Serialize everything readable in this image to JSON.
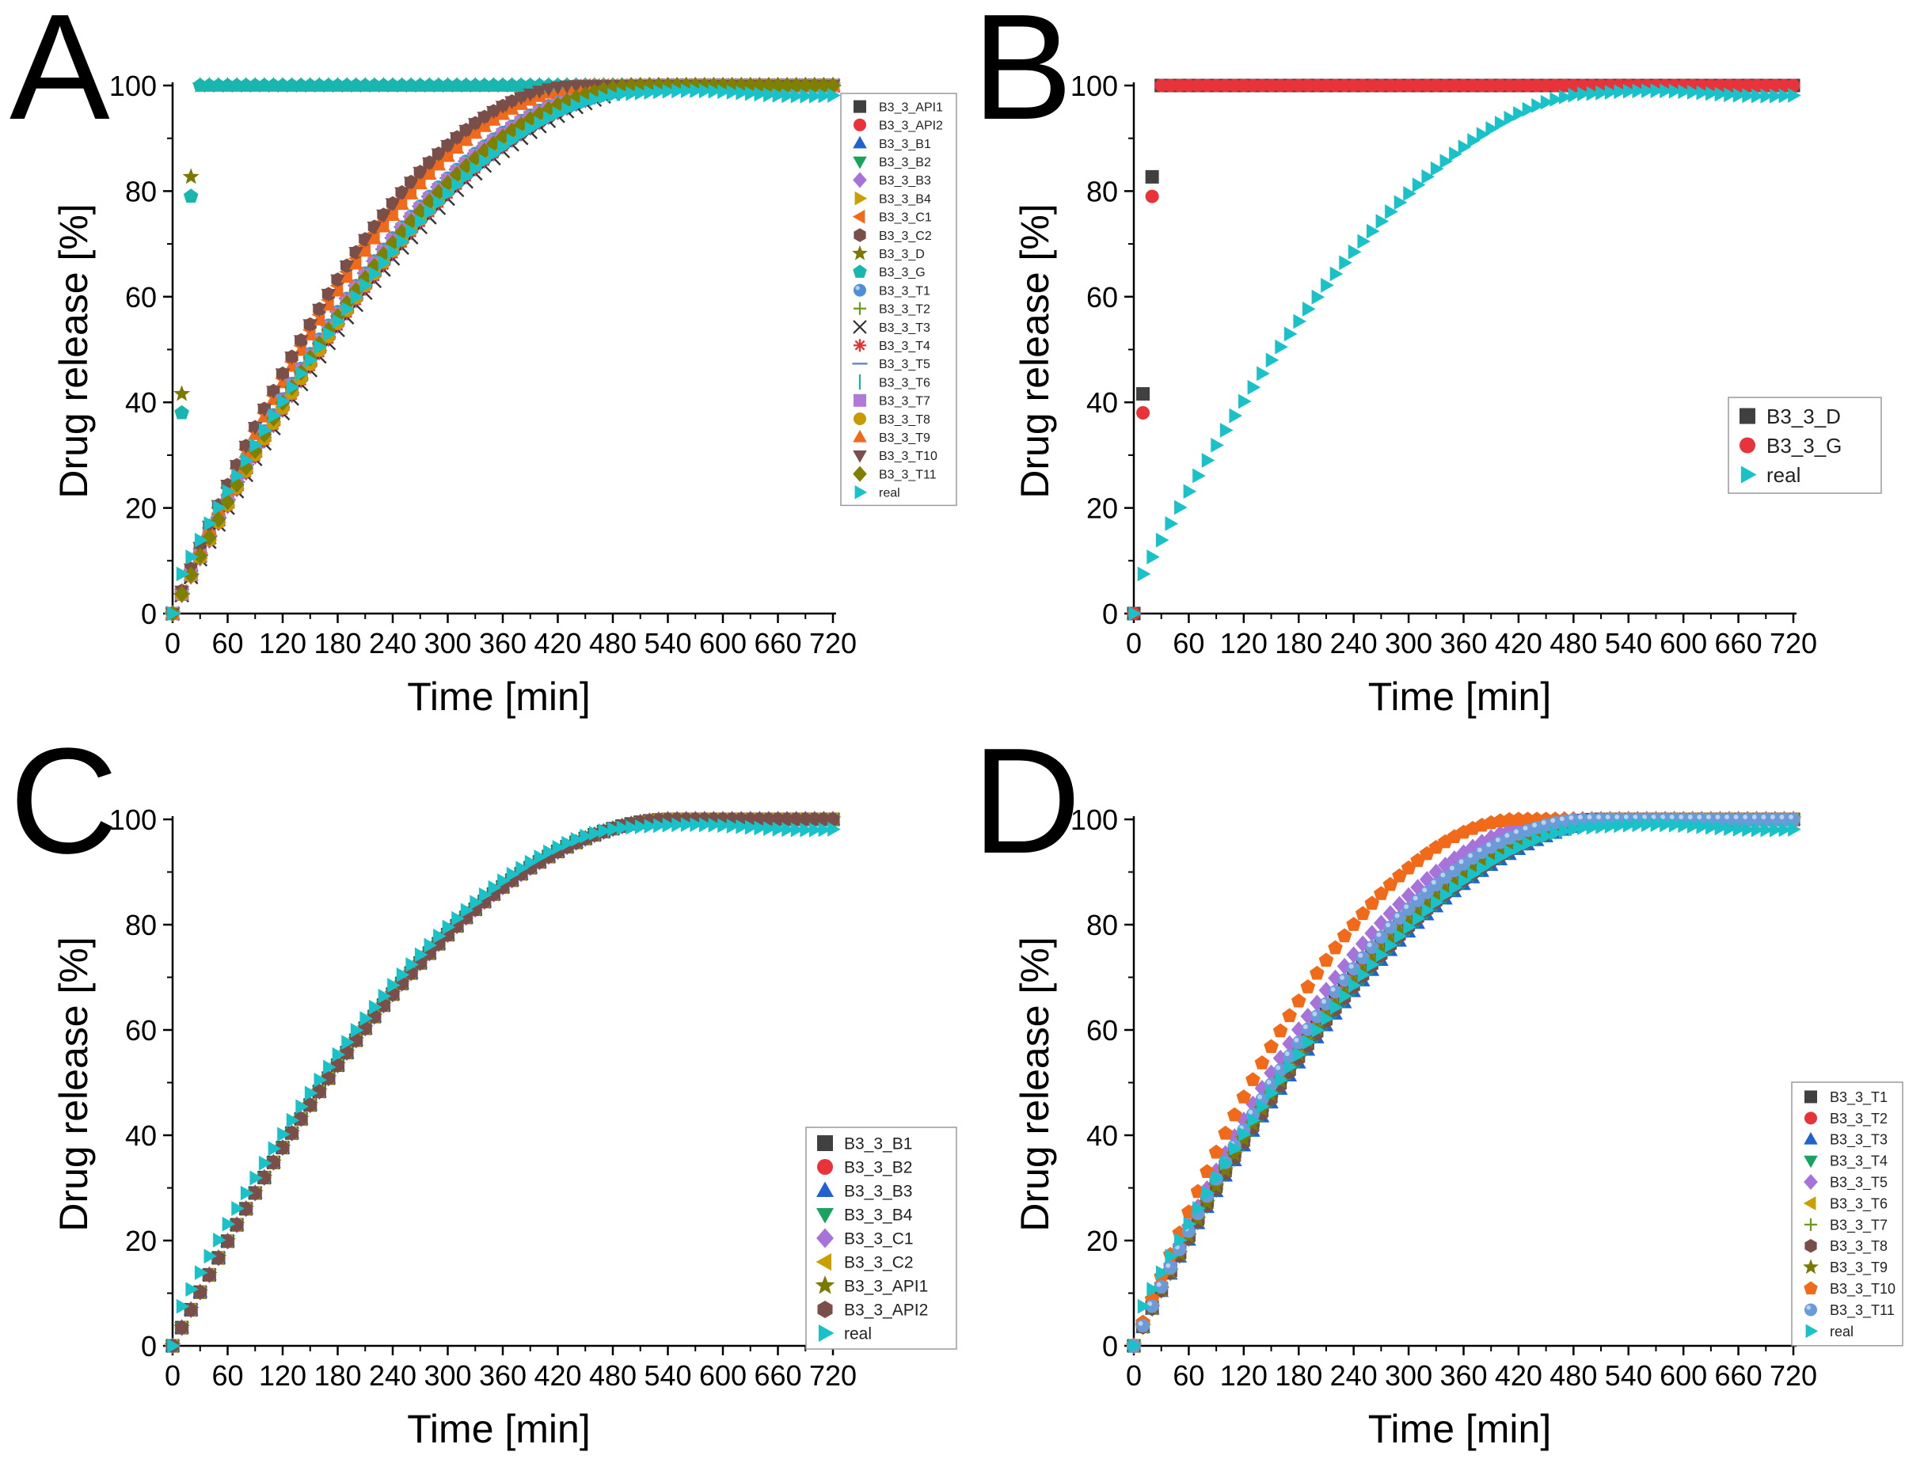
{
  "figure": {
    "panels": [
      "A",
      "B",
      "C",
      "D"
    ]
  },
  "chart_data": [
    {
      "panel": "A",
      "type": "scatter",
      "xlabel": "Time [min]",
      "ylabel": "Drug release [%]",
      "xlim": [
        0,
        720
      ],
      "ylim": [
        0,
        100
      ],
      "xticks": [
        0,
        60,
        120,
        180,
        240,
        300,
        360,
        420,
        480,
        540,
        600,
        660,
        720
      ],
      "yticks": [
        0,
        20,
        40,
        60,
        80,
        100
      ],
      "legend_position": "right",
      "series": [
        {
          "name": "B3_3_API1",
          "model": "curve",
          "tend": 510,
          "color": "#404040",
          "marker": "square"
        },
        {
          "name": "B3_3_API2",
          "model": "curve",
          "tend": 520,
          "color": "#e8333a",
          "marker": "circle"
        },
        {
          "name": "B3_3_B1",
          "model": "curve",
          "tend": 515,
          "color": "#1f63d1",
          "marker": "triangle-up"
        },
        {
          "name": "B3_3_B2",
          "model": "curve",
          "tend": 520,
          "color": "#1aa360",
          "marker": "triangle-down"
        },
        {
          "name": "B3_3_B3",
          "model": "curve",
          "tend": 530,
          "color": "#a772d9",
          "marker": "diamond"
        },
        {
          "name": "B3_3_B4",
          "model": "curve",
          "tend": 525,
          "color": "#c8a000",
          "marker": "triangle-right"
        },
        {
          "name": "B3_3_C1",
          "model": "curve",
          "tend": 450,
          "color": "#f06a1a",
          "marker": "triangle-left"
        },
        {
          "name": "B3_3_C2",
          "model": "curve",
          "tend": 440,
          "color": "#7b4f49",
          "marker": "hexagon"
        },
        {
          "name": "B3_3_D",
          "model": "instant",
          "points": [
            [
              0,
              0
            ],
            [
              10,
              41.6
            ],
            [
              20,
              82.7
            ],
            [
              30,
              100
            ]
          ],
          "color": "#7a7a00",
          "marker": "star"
        },
        {
          "name": "B3_3_G",
          "model": "instant",
          "points": [
            [
              0,
              0
            ],
            [
              10,
              38
            ],
            [
              20,
              79
            ],
            [
              30,
              100
            ]
          ],
          "color": "#19b6b0",
          "marker": "pentagon"
        },
        {
          "name": "B3_3_T1",
          "model": "curve",
          "tend": 500,
          "color": "#4e8fd6",
          "marker": "sphere"
        },
        {
          "name": "B3_3_T2",
          "model": "curve",
          "tend": 520,
          "color": "#6a9a1e",
          "marker": "plus"
        },
        {
          "name": "B3_3_T3",
          "model": "curve",
          "tend": 540,
          "color": "#333333",
          "marker": "x"
        },
        {
          "name": "B3_3_T4",
          "model": "curve",
          "tend": 530,
          "color": "#e83030",
          "marker": "asterisk"
        },
        {
          "name": "B3_3_T5",
          "model": "curve",
          "tend": 500,
          "color": "#5a7fd0",
          "marker": "hline"
        },
        {
          "name": "B3_3_T6",
          "model": "curve",
          "tend": 505,
          "color": "#2aa7a0",
          "marker": "vline"
        },
        {
          "name": "B3_3_T7",
          "model": "curve",
          "tend": 505,
          "color": "#b07ad6",
          "marker": "square"
        },
        {
          "name": "B3_3_T8",
          "model": "curve",
          "tend": 525,
          "color": "#c99a00",
          "marker": "circle"
        },
        {
          "name": "B3_3_T9",
          "model": "curve",
          "tend": 460,
          "color": "#f06a1a",
          "marker": "triangle-up"
        },
        {
          "name": "B3_3_T10",
          "model": "curve",
          "tend": 440,
          "color": "#7b4f49",
          "marker": "triangle-down"
        },
        {
          "name": "B3_3_T11",
          "model": "curve",
          "tend": 510,
          "color": "#7f7f00",
          "marker": "diamond"
        },
        {
          "name": "real",
          "model": "real",
          "color": "#19c2c8",
          "marker": "triangle-right"
        }
      ]
    },
    {
      "panel": "B",
      "type": "scatter",
      "xlabel": "Time [min]",
      "ylabel": "Drug release [%]",
      "xlim": [
        0,
        720
      ],
      "ylim": [
        0,
        100
      ],
      "xticks": [
        0,
        60,
        120,
        180,
        240,
        300,
        360,
        420,
        480,
        540,
        600,
        660,
        720
      ],
      "yticks": [
        0,
        20,
        40,
        60,
        80,
        100
      ],
      "legend_position": "right",
      "series": [
        {
          "name": "B3_3_D",
          "model": "instant",
          "points": [
            [
              0,
              0
            ],
            [
              10,
              41.6
            ],
            [
              20,
              82.7
            ],
            [
              30,
              100
            ]
          ],
          "color": "#404040",
          "marker": "square"
        },
        {
          "name": "B3_3_G",
          "model": "instant",
          "points": [
            [
              0,
              0
            ],
            [
              10,
              38
            ],
            [
              20,
              79
            ],
            [
              30,
              100
            ]
          ],
          "color": "#e8333a",
          "marker": "circle"
        },
        {
          "name": "real",
          "model": "real",
          "color": "#19c2c8",
          "marker": "triangle-right"
        }
      ]
    },
    {
      "panel": "C",
      "type": "scatter",
      "xlabel": "Time [min]",
      "ylabel": "Drug release [%]",
      "xlim": [
        0,
        720
      ],
      "ylim": [
        0,
        100
      ],
      "xticks": [
        0,
        60,
        120,
        180,
        240,
        300,
        360,
        420,
        480,
        540,
        600,
        660,
        720
      ],
      "yticks": [
        0,
        20,
        40,
        60,
        80,
        100
      ],
      "legend_position": "bottom-right",
      "series": [
        {
          "name": "B3_3_B1",
          "model": "curve",
          "tend": 545,
          "color": "#404040",
          "marker": "square"
        },
        {
          "name": "B3_3_B2",
          "model": "curve",
          "tend": 545,
          "color": "#e8333a",
          "marker": "circle"
        },
        {
          "name": "B3_3_B3",
          "model": "curve",
          "tend": 545,
          "color": "#1f63d1",
          "marker": "triangle-up"
        },
        {
          "name": "B3_3_B4",
          "model": "curve",
          "tend": 545,
          "color": "#1aa360",
          "marker": "triangle-down"
        },
        {
          "name": "B3_3_C1",
          "model": "curve",
          "tend": 545,
          "color": "#a772d9",
          "marker": "diamond"
        },
        {
          "name": "B3_3_C2",
          "model": "curve",
          "tend": 545,
          "color": "#c8a000",
          "marker": "triangle-left"
        },
        {
          "name": "B3_3_API1",
          "model": "curve",
          "tend": 545,
          "color": "#7a7a00",
          "marker": "star"
        },
        {
          "name": "B3_3_API2",
          "model": "curve",
          "tend": 545,
          "color": "#7b4f49",
          "marker": "hexagon"
        },
        {
          "name": "real",
          "model": "real",
          "color": "#19c2c8",
          "marker": "triangle-right"
        }
      ]
    },
    {
      "panel": "D",
      "type": "scatter",
      "xlabel": "Time [min]",
      "ylabel": "Drug release [%]",
      "xlim": [
        0,
        720
      ],
      "ylim": [
        0,
        100
      ],
      "xticks": [
        0,
        60,
        120,
        180,
        240,
        300,
        360,
        420,
        480,
        540,
        600,
        660,
        720
      ],
      "yticks": [
        0,
        20,
        40,
        60,
        80,
        100
      ],
      "legend_position": "bottom-right",
      "series": [
        {
          "name": "B3_3_T1",
          "model": "curve",
          "tend": 510,
          "color": "#404040",
          "marker": "square"
        },
        {
          "name": "B3_3_T2",
          "model": "curve",
          "tend": 515,
          "color": "#e8333a",
          "marker": "circle"
        },
        {
          "name": "B3_3_T3",
          "model": "curve",
          "tend": 540,
          "color": "#1f63d1",
          "marker": "triangle-up"
        },
        {
          "name": "B3_3_T4",
          "model": "curve",
          "tend": 535,
          "color": "#1aa360",
          "marker": "triangle-down"
        },
        {
          "name": "B3_3_T5",
          "model": "curve",
          "tend": 470,
          "color": "#a772d9",
          "marker": "diamond"
        },
        {
          "name": "B3_3_T6",
          "model": "curve",
          "tend": 520,
          "color": "#c8a000",
          "marker": "triangle-left"
        },
        {
          "name": "B3_3_T7",
          "model": "curve",
          "tend": 510,
          "color": "#6a9a1e",
          "marker": "plus"
        },
        {
          "name": "B3_3_T8",
          "model": "curve",
          "tend": 530,
          "color": "#7b4f49",
          "marker": "hexagon"
        },
        {
          "name": "B3_3_T9",
          "model": "curve",
          "tend": 520,
          "color": "#7a7a00",
          "marker": "star"
        },
        {
          "name": "B3_3_T10",
          "model": "curve",
          "tend": 420,
          "color": "#f06a1a",
          "marker": "pentagon"
        },
        {
          "name": "B3_3_T11",
          "model": "curve",
          "tend": 495,
          "color": "#6b9ad8",
          "marker": "sphere"
        },
        {
          "name": "real",
          "model": "real",
          "color": "#19c2c8",
          "marker": "triangle-right"
        }
      ]
    }
  ]
}
